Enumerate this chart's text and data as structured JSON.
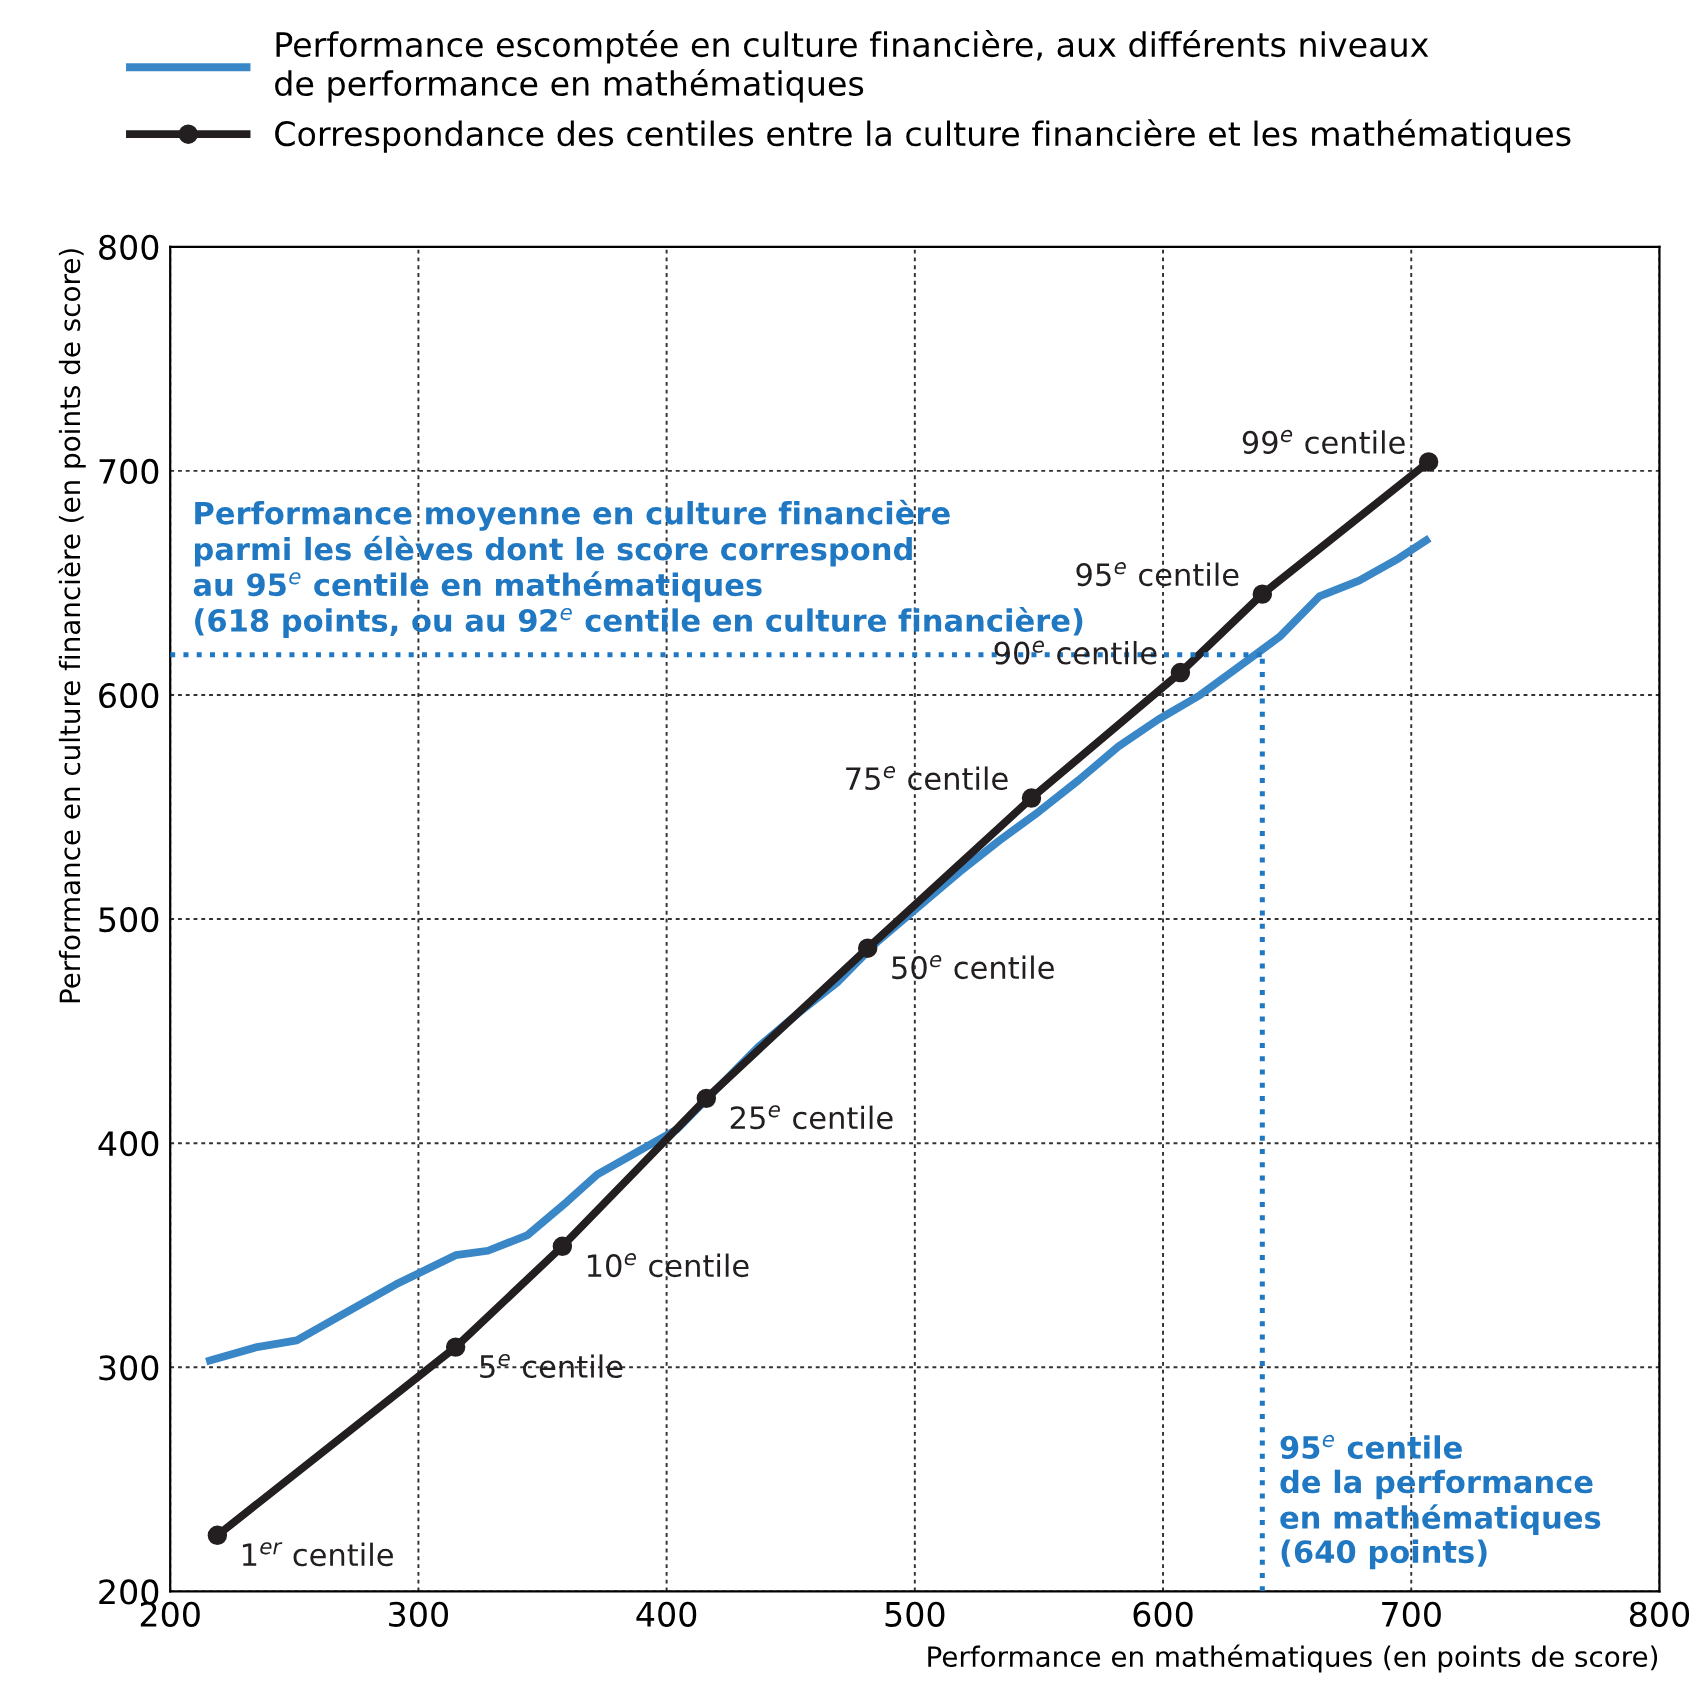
{
  "chart_data": {
    "type": "line",
    "xlabel": "Performance en mathématiques (en points de score)",
    "ylabel": "Performance en culture financière (en points de score)",
    "xlim": [
      200,
      800
    ],
    "ylim": [
      200,
      800
    ],
    "xticks": [
      200,
      300,
      400,
      500,
      600,
      700,
      800
    ],
    "yticks": [
      200,
      300,
      400,
      500,
      600,
      700,
      800
    ],
    "grid": true,
    "legend": "top",
    "series": [
      {
        "name": "Performance escomptée en culture financière, aux différents niveaux\nde performance en mathématiques",
        "color": "#3a87c8",
        "marker": "none",
        "x": [
          216,
          235,
          251,
          267,
          291,
          315,
          328,
          344,
          360,
          372,
          388,
          404,
          420,
          437,
          453,
          469,
          485,
          501,
          518,
          534,
          550,
          566,
          582,
          598,
          615,
          631,
          647,
          663,
          679,
          695,
          706
        ],
        "values": [
          303,
          309,
          312,
          322,
          337,
          350,
          352,
          359,
          374,
          386,
          396,
          406,
          424,
          443,
          458,
          472,
          490,
          505,
          521,
          535,
          548,
          562,
          577,
          589,
          600,
          613,
          626,
          644,
          651,
          661,
          669
        ]
      },
      {
        "name": "Correspondance des centiles entre la culture financière et les mathématiques",
        "color": "#231f20",
        "marker": "circle",
        "x": [
          219,
          315,
          358,
          416,
          481,
          547,
          607,
          640,
          707
        ],
        "values": [
          225,
          309,
          354,
          420,
          487,
          554,
          610,
          645,
          704
        ]
      },
      {
        "color": "#1f78c1",
        "line_style": "dotted",
        "marker": "none",
        "x": [
          200,
          640
        ],
        "values": [
          618,
          618
        ]
      },
      {
        "color": "#1f78c1",
        "line_style": "dotted",
        "marker": "none",
        "x": [
          640,
          640
        ],
        "values": [
          200,
          618
        ]
      }
    ],
    "annotations": [
      {
        "text": "1$^{er}$ centile",
        "x": 219,
        "y": 225
      },
      {
        "text": "5$^{e}$ centile",
        "x": 315,
        "y": 309
      },
      {
        "text": "10$^{e}$ centile",
        "x": 358,
        "y": 354
      },
      {
        "text": "25$^{e}$ centile",
        "x": 416,
        "y": 420
      },
      {
        "text": "50$^{e}$ centile",
        "x": 481,
        "y": 487
      },
      {
        "text": "75$^{e}$ centile",
        "x": 547,
        "y": 554
      },
      {
        "text": "90$^{e}$ centile",
        "x": 607,
        "y": 610
      },
      {
        "text": "95$^{e}$ centile",
        "x": 640,
        "y": 645
      },
      {
        "text": "99$^{e}$ centile",
        "x": 707,
        "y": 704
      },
      {
        "text": "Performance moyenne en culture financière\nparmi les élèves dont le score correspond\nau 95$^{e}$ centile en mathématiques\n(618 points, ou au 92$^{e}$ centile en culture financière)",
        "x": 200,
        "y": 618
      },
      {
        "text": "95$^{e}$ centile\nde la performance\nen mathématiques\n(640 points)",
        "x": 640,
        "y": 200
      }
    ]
  }
}
